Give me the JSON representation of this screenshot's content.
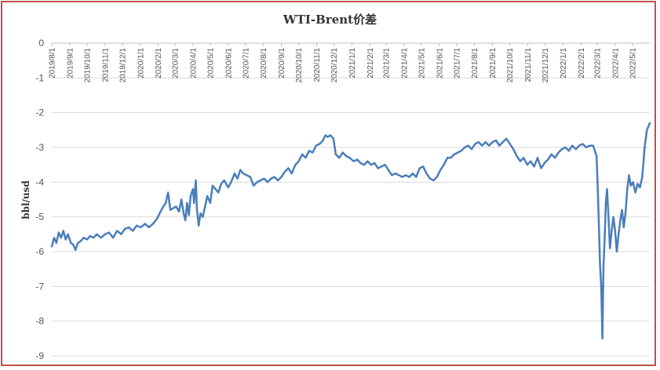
{
  "colors": {
    "border": "#c0504d",
    "line": "#4a7ebb",
    "grid": "#d9d9d9",
    "axis": "#bfbfbf"
  },
  "chart_data": {
    "type": "line",
    "title": "WTI-Brent价差",
    "xlabel": "",
    "ylabel": "bbl/usd",
    "ylim": [
      -9,
      0
    ],
    "yticks": [
      0,
      -1,
      -2,
      -3,
      -4,
      -5,
      -6,
      -7,
      -8,
      -9
    ],
    "xlim": [
      "2019-08-01",
      "2022-05-31"
    ],
    "x_tick_labels": [
      "2019/8/1",
      "2019/9/1",
      "2019/10/1",
      "2019/11/1",
      "2019/12/1",
      "2020/1/1",
      "2020/2/1",
      "2020/3/1",
      "2020/4/1",
      "2020/5/1",
      "2020/6/1",
      "2020/7/1",
      "2020/8/1",
      "2020/9/1",
      "2020/10/1",
      "2020/11/1",
      "2020/12/1",
      "2021/1/1",
      "2021/2/1",
      "2021/3/1",
      "2021/4/1",
      "2021/5/1",
      "2021/6/1",
      "2021/7/1",
      "2021/8/1",
      "2021/9/1",
      "2021/10/1",
      "2021/11/1",
      "2021/12/1",
      "2022/1/1",
      "2022/2/1",
      "2022/3/1",
      "2022/4/1",
      "2022/5/1"
    ],
    "grid": "horizontal",
    "series": [
      {
        "points": [
          [
            "2019-08-01",
            -5.85
          ],
          [
            "2019-08-05",
            -5.6
          ],
          [
            "2019-08-09",
            -5.75
          ],
          [
            "2019-08-13",
            -5.45
          ],
          [
            "2019-08-17",
            -5.6
          ],
          [
            "2019-08-21",
            -5.4
          ],
          [
            "2019-08-25",
            -5.65
          ],
          [
            "2019-08-29",
            -5.5
          ],
          [
            "2019-09-03",
            -5.75
          ],
          [
            "2019-09-07",
            -5.8
          ],
          [
            "2019-09-11",
            -5.95
          ],
          [
            "2019-09-15",
            -5.75
          ],
          [
            "2019-09-20",
            -5.7
          ],
          [
            "2019-09-25",
            -5.6
          ],
          [
            "2019-10-01",
            -5.65
          ],
          [
            "2019-10-06",
            -5.55
          ],
          [
            "2019-10-12",
            -5.6
          ],
          [
            "2019-10-18",
            -5.5
          ],
          [
            "2019-10-25",
            -5.6
          ],
          [
            "2019-11-01",
            -5.5
          ],
          [
            "2019-11-08",
            -5.45
          ],
          [
            "2019-11-15",
            -5.6
          ],
          [
            "2019-11-22",
            -5.4
          ],
          [
            "2019-11-29",
            -5.5
          ],
          [
            "2019-12-05",
            -5.35
          ],
          [
            "2019-12-12",
            -5.3
          ],
          [
            "2019-12-19",
            -5.4
          ],
          [
            "2019-12-26",
            -5.25
          ],
          [
            "2020-01-02",
            -5.3
          ],
          [
            "2020-01-09",
            -5.2
          ],
          [
            "2020-01-16",
            -5.3
          ],
          [
            "2020-01-23",
            -5.2
          ],
          [
            "2020-01-30",
            -5.05
          ],
          [
            "2020-02-05",
            -4.85
          ],
          [
            "2020-02-10",
            -4.7
          ],
          [
            "2020-02-14",
            -4.6
          ],
          [
            "2020-02-18",
            -4.3
          ],
          [
            "2020-02-22",
            -4.8
          ],
          [
            "2020-02-27",
            -4.75
          ],
          [
            "2020-03-03",
            -4.7
          ],
          [
            "2020-03-08",
            -4.85
          ],
          [
            "2020-03-12",
            -4.5
          ],
          [
            "2020-03-16",
            -4.9
          ],
          [
            "2020-03-19",
            -5.1
          ],
          [
            "2020-03-22",
            -4.6
          ],
          [
            "2020-03-25",
            -4.95
          ],
          [
            "2020-03-28",
            -4.4
          ],
          [
            "2020-04-01",
            -4.2
          ],
          [
            "2020-04-03",
            -4.6
          ],
          [
            "2020-04-06",
            -3.95
          ],
          [
            "2020-04-08",
            -4.8
          ],
          [
            "2020-04-11",
            -5.25
          ],
          [
            "2020-04-14",
            -4.9
          ],
          [
            "2020-04-18",
            -5.0
          ],
          [
            "2020-04-22",
            -4.7
          ],
          [
            "2020-04-26",
            -4.4
          ],
          [
            "2020-05-01",
            -4.6
          ],
          [
            "2020-05-05",
            -4.1
          ],
          [
            "2020-05-10",
            -4.2
          ],
          [
            "2020-05-15",
            -4.3
          ],
          [
            "2020-05-20",
            -4.05
          ],
          [
            "2020-05-25",
            -3.95
          ],
          [
            "2020-06-01",
            -4.15
          ],
          [
            "2020-06-06",
            -4.0
          ],
          [
            "2020-06-12",
            -3.75
          ],
          [
            "2020-06-17",
            -3.9
          ],
          [
            "2020-06-22",
            -3.65
          ],
          [
            "2020-06-27",
            -3.75
          ],
          [
            "2020-07-03",
            -3.8
          ],
          [
            "2020-07-09",
            -3.85
          ],
          [
            "2020-07-15",
            -4.1
          ],
          [
            "2020-07-21",
            -4.0
          ],
          [
            "2020-07-27",
            -3.95
          ],
          [
            "2020-08-02",
            -3.9
          ],
          [
            "2020-08-08",
            -4.0
          ],
          [
            "2020-08-14",
            -3.9
          ],
          [
            "2020-08-20",
            -3.85
          ],
          [
            "2020-08-26",
            -3.95
          ],
          [
            "2020-09-01",
            -3.85
          ],
          [
            "2020-09-07",
            -3.7
          ],
          [
            "2020-09-13",
            -3.6
          ],
          [
            "2020-09-19",
            -3.75
          ],
          [
            "2020-09-25",
            -3.5
          ],
          [
            "2020-10-01",
            -3.4
          ],
          [
            "2020-10-07",
            -3.2
          ],
          [
            "2020-10-13",
            -3.3
          ],
          [
            "2020-10-19",
            -3.1
          ],
          [
            "2020-10-25",
            -3.15
          ],
          [
            "2020-10-31",
            -2.95
          ],
          [
            "2020-11-06",
            -2.9
          ],
          [
            "2020-11-12",
            -2.8
          ],
          [
            "2020-11-16",
            -2.65
          ],
          [
            "2020-11-20",
            -2.7
          ],
          [
            "2020-11-25",
            -2.65
          ],
          [
            "2020-11-30",
            -2.75
          ],
          [
            "2020-12-04",
            -3.2
          ],
          [
            "2020-12-10",
            -3.3
          ],
          [
            "2020-12-16",
            -3.15
          ],
          [
            "2020-12-22",
            -3.25
          ],
          [
            "2020-12-28",
            -3.3
          ],
          [
            "2021-01-04",
            -3.4
          ],
          [
            "2021-01-10",
            -3.35
          ],
          [
            "2021-01-16",
            -3.45
          ],
          [
            "2021-01-22",
            -3.5
          ],
          [
            "2021-01-28",
            -3.4
          ],
          [
            "2021-02-03",
            -3.5
          ],
          [
            "2021-02-09",
            -3.45
          ],
          [
            "2021-02-15",
            -3.6
          ],
          [
            "2021-02-21",
            -3.55
          ],
          [
            "2021-02-27",
            -3.5
          ],
          [
            "2021-03-05",
            -3.65
          ],
          [
            "2021-03-11",
            -3.8
          ],
          [
            "2021-03-17",
            -3.75
          ],
          [
            "2021-03-23",
            -3.8
          ],
          [
            "2021-03-29",
            -3.85
          ],
          [
            "2021-04-04",
            -3.8
          ],
          [
            "2021-04-10",
            -3.85
          ],
          [
            "2021-04-16",
            -3.75
          ],
          [
            "2021-04-22",
            -3.85
          ],
          [
            "2021-04-28",
            -3.6
          ],
          [
            "2021-05-04",
            -3.55
          ],
          [
            "2021-05-10",
            -3.75
          ],
          [
            "2021-05-16",
            -3.9
          ],
          [
            "2021-05-22",
            -3.95
          ],
          [
            "2021-05-28",
            -3.85
          ],
          [
            "2021-06-03",
            -3.65
          ],
          [
            "2021-06-09",
            -3.5
          ],
          [
            "2021-06-15",
            -3.3
          ],
          [
            "2021-06-21",
            -3.3
          ],
          [
            "2021-06-27",
            -3.2
          ],
          [
            "2021-07-03",
            -3.15
          ],
          [
            "2021-07-09",
            -3.1
          ],
          [
            "2021-07-15",
            -3.0
          ],
          [
            "2021-07-21",
            -2.95
          ],
          [
            "2021-07-27",
            -3.05
          ],
          [
            "2021-08-02",
            -2.9
          ],
          [
            "2021-08-08",
            -2.85
          ],
          [
            "2021-08-14",
            -2.95
          ],
          [
            "2021-08-20",
            -2.85
          ],
          [
            "2021-08-26",
            -2.95
          ],
          [
            "2021-09-01",
            -2.85
          ],
          [
            "2021-09-07",
            -2.8
          ],
          [
            "2021-09-13",
            -2.95
          ],
          [
            "2021-09-19",
            -2.85
          ],
          [
            "2021-09-25",
            -2.75
          ],
          [
            "2021-10-01",
            -2.9
          ],
          [
            "2021-10-07",
            -3.05
          ],
          [
            "2021-10-13",
            -3.25
          ],
          [
            "2021-10-19",
            -3.4
          ],
          [
            "2021-10-25",
            -3.3
          ],
          [
            "2021-10-31",
            -3.5
          ],
          [
            "2021-11-06",
            -3.4
          ],
          [
            "2021-11-12",
            -3.55
          ],
          [
            "2021-11-18",
            -3.3
          ],
          [
            "2021-11-24",
            -3.6
          ],
          [
            "2021-11-30",
            -3.45
          ],
          [
            "2021-12-06",
            -3.35
          ],
          [
            "2021-12-12",
            -3.2
          ],
          [
            "2021-12-18",
            -3.3
          ],
          [
            "2021-12-24",
            -3.15
          ],
          [
            "2021-12-30",
            -3.05
          ],
          [
            "2022-01-05",
            -3.0
          ],
          [
            "2022-01-11",
            -3.1
          ],
          [
            "2022-01-17",
            -2.95
          ],
          [
            "2022-01-23",
            -3.05
          ],
          [
            "2022-01-29",
            -2.95
          ],
          [
            "2022-02-04",
            -2.9
          ],
          [
            "2022-02-10",
            -3.0
          ],
          [
            "2022-02-16",
            -2.95
          ],
          [
            "2022-02-22",
            -2.95
          ],
          [
            "2022-02-28",
            -3.25
          ],
          [
            "2022-03-02",
            -4.2
          ],
          [
            "2022-03-04",
            -5.2
          ],
          [
            "2022-03-06",
            -6.4
          ],
          [
            "2022-03-08",
            -7.0
          ],
          [
            "2022-03-10",
            -8.5
          ],
          [
            "2022-03-12",
            -6.4
          ],
          [
            "2022-03-14",
            -5.6
          ],
          [
            "2022-03-16",
            -4.6
          ],
          [
            "2022-03-18",
            -4.2
          ],
          [
            "2022-03-20",
            -4.8
          ],
          [
            "2022-03-23",
            -5.9
          ],
          [
            "2022-03-26",
            -5.4
          ],
          [
            "2022-03-29",
            -5.0
          ],
          [
            "2022-04-01",
            -5.4
          ],
          [
            "2022-04-04",
            -6.0
          ],
          [
            "2022-04-07",
            -5.5
          ],
          [
            "2022-04-10",
            -5.1
          ],
          [
            "2022-04-13",
            -4.8
          ],
          [
            "2022-04-16",
            -5.3
          ],
          [
            "2022-04-19",
            -4.9
          ],
          [
            "2022-04-22",
            -4.2
          ],
          [
            "2022-04-25",
            -3.8
          ],
          [
            "2022-04-28",
            -4.1
          ],
          [
            "2022-05-02",
            -4.0
          ],
          [
            "2022-05-06",
            -4.3
          ],
          [
            "2022-05-10",
            -4.05
          ],
          [
            "2022-05-14",
            -4.15
          ],
          [
            "2022-05-18",
            -3.85
          ],
          [
            "2022-05-22",
            -3.0
          ],
          [
            "2022-05-26",
            -2.5
          ],
          [
            "2022-05-31",
            -2.3
          ]
        ]
      }
    ]
  }
}
